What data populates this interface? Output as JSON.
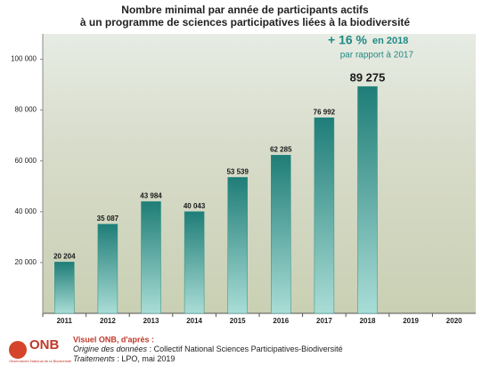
{
  "chart_data": {
    "type": "bar",
    "title": [
      "Nombre minimal par année de participants actifs",
      "à un programme de sciences participatives liées à la biodiversité"
    ],
    "categories": [
      "2011",
      "2012",
      "2013",
      "2014",
      "2015",
      "2016",
      "2017",
      "2018",
      "2019",
      "2020"
    ],
    "values": [
      20204,
      35087,
      43984,
      40043,
      53539,
      62285,
      76992,
      89275,
      null,
      null
    ],
    "value_labels": [
      "20 204",
      "35 087",
      "43 984",
      "40 043",
      "53 539",
      "62 285",
      "76 992",
      "89 275",
      null,
      null
    ],
    "color": "#2a8f88",
    "ylim": [
      0,
      110000
    ],
    "yticks": [
      {
        "value": 20000,
        "label": "20 000"
      },
      {
        "value": 40000,
        "label": "40 000"
      },
      {
        "value": 60000,
        "label": "60 000"
      },
      {
        "value": 80000,
        "label": "80 000"
      },
      {
        "value": 100000,
        "label": "100 000"
      }
    ],
    "annotation": {
      "text": "+ 16 %",
      "suffix": "en 2018",
      "note": "par rapport à 2017"
    },
    "logo": {
      "name": "ONB",
      "subtitle": "Observatoire National de la Biodiversité"
    },
    "footer": {
      "credit": "Visuel ONB, d'après :",
      "source_label": "Origine des données",
      "source": " : Collectif National Sciences Participatives-Biodiversité",
      "processing_label": "Traitements",
      "processing": " : LPO, mai 2019"
    }
  }
}
